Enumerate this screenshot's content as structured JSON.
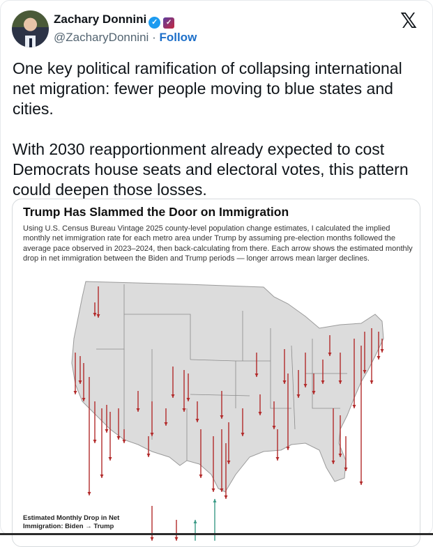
{
  "author": {
    "name": "Zachary Donnini",
    "handle": "@ZacharyDonnini",
    "separator": "·",
    "follow_label": "Follow",
    "verified_icon": "✓",
    "affiliate_icon": "✓"
  },
  "platform_logo": "𝕏",
  "tweet_text": "One key political ramification of collapsing international net migration: fewer people moving to blue states and cities.\n\nWith 2030 reapportionment already expected to cost Democrats house seats and electoral votes, this pattern could deepen those losses.",
  "card": {
    "title": "Trump Has Slammed the Door on Immigration",
    "description": "Using U.S. Census Bureau Vintage 2025 county-level population change estimates, I calculated the implied monthly net immigration rate for each metro area under Trump by assuming pre-election months followed the average pace observed in 2023–2024, then back-calculating from there. Each arrow shows the estimated monthly drop in net immigration between the Biden and Trump periods — longer arrows mean larger declines.",
    "legend_title": "Estimated Monthly Drop in Net Immigration: Biden → Trump",
    "colors": {
      "decline": "#b22a2a",
      "increase": "#3a9a86",
      "land": "#dcdcdc",
      "border": "#8a8a8a"
    }
  }
}
